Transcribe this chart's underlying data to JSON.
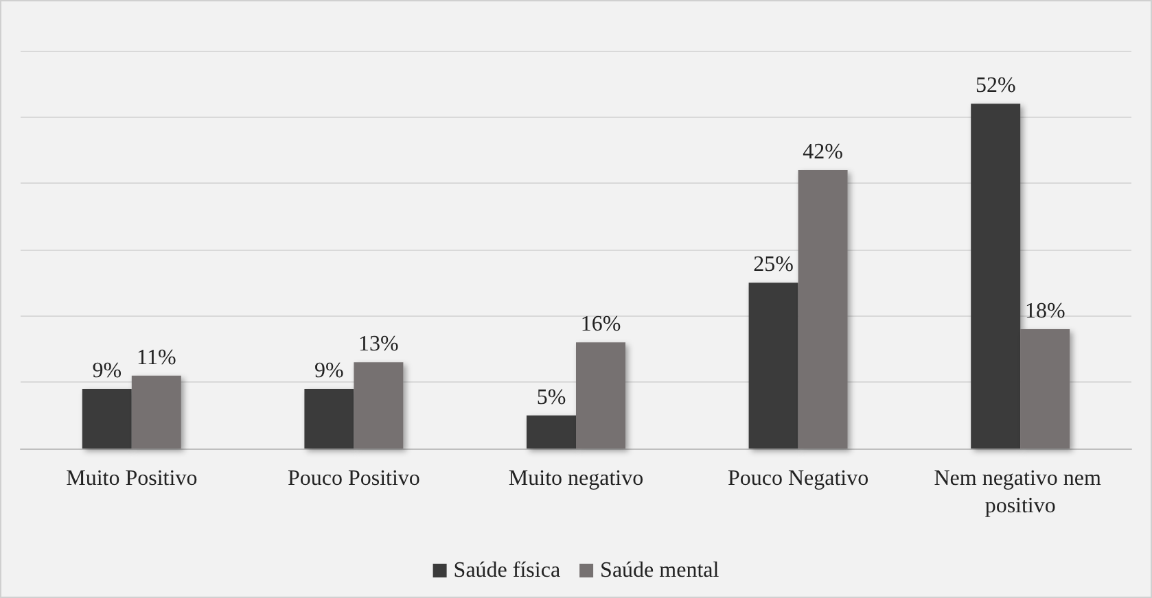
{
  "chart_data": {
    "type": "bar",
    "categories": [
      "Muito Positivo",
      "Pouco Positivo",
      "Muito negativo",
      "Pouco Negativo",
      "Nem negativo nem positivo"
    ],
    "series": [
      {
        "name": "Saúde física",
        "color": "#3b3b3b",
        "values": [
          9,
          9,
          5,
          25,
          52
        ],
        "value_labels": [
          "9%",
          "9%",
          "5%",
          "25%",
          "52%"
        ]
      },
      {
        "name": "Saúde mental",
        "color": "#767171",
        "values": [
          11,
          13,
          16,
          42,
          18
        ],
        "value_labels": [
          "11%",
          "13%",
          "16%",
          "42%",
          "18%"
        ]
      }
    ],
    "ylim": [
      0,
      60
    ],
    "yticks": [
      {
        "value": 0,
        "label": null
      },
      {
        "value": 10,
        "label": null
      },
      {
        "value": 20,
        "label": null
      },
      {
        "value": 30,
        "label": null
      },
      {
        "value": 40,
        "label": null
      },
      {
        "value": 50,
        "label": null
      },
      {
        "value": 60,
        "label": null
      }
    ],
    "tick_labels": "x",
    "grid": "y",
    "legend": "bottom"
  }
}
